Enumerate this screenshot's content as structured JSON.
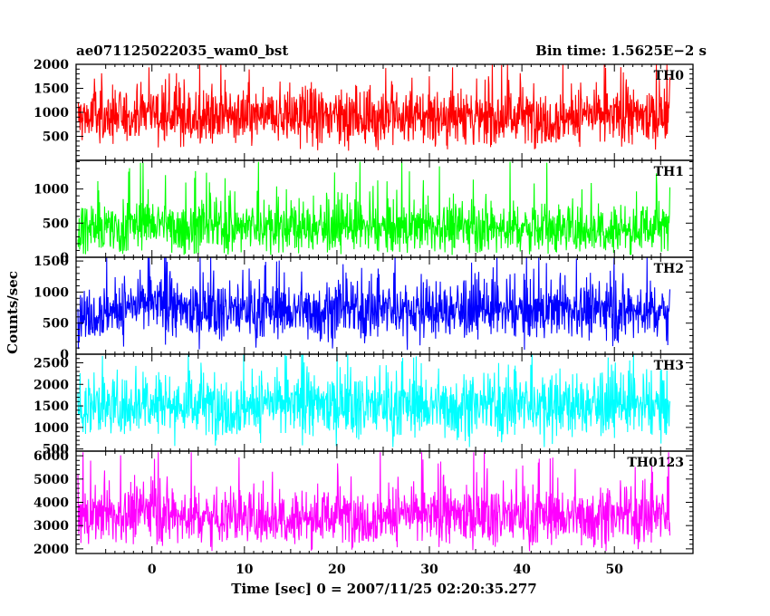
{
  "header": {
    "title": "ae071125022035_wam0_bst",
    "bin_time": "Bin time: 1.5625E−2 s"
  },
  "chart_data": {
    "type": "line",
    "title": "ae071125022035_wam0_bst",
    "subtitle": "Bin time: 1.5625E−2 s",
    "xlabel": "Time [sec] 0 = 2007/11/25 02:20:35.277",
    "ylabel": "Counts/sec",
    "xlim": [
      -8.2,
      58.5
    ],
    "data_range": [
      -8.0,
      56.0
    ],
    "x_ticks": [
      0,
      10,
      20,
      30,
      40,
      50
    ],
    "panels": [
      {
        "name": "TH0",
        "color": "#ff0000",
        "ylim": [
          0,
          2000
        ],
        "ticks": [
          500,
          1000,
          1500,
          2000
        ],
        "mean": 900,
        "spread": 300,
        "min": 200,
        "max": 2000,
        "peak_x": 0.0
      },
      {
        "name": "TH1",
        "color": "#00ff00",
        "ylim": [
          0,
          1420
        ],
        "ticks": [
          0,
          500,
          1000
        ],
        "mean": 430,
        "spread": 190,
        "min": 30,
        "max": 1400,
        "peak_x": 0.0
      },
      {
        "name": "TH2",
        "color": "#0000ff",
        "ylim": [
          0,
          1560
        ],
        "ticks": [
          0,
          500,
          1000,
          1500
        ],
        "mean": 700,
        "spread": 230,
        "min": 60,
        "max": 1560,
        "peak_x": 0.0
      },
      {
        "name": "TH3",
        "color": "#00ffff",
        "ylim": [
          450,
          2700
        ],
        "ticks": [
          500,
          1000,
          1500,
          2000,
          2500
        ],
        "mean": 1500,
        "spread": 370,
        "min": 540,
        "max": 2700,
        "peak_x": 0.0
      },
      {
        "name": "TH0123",
        "color": "#ff00ff",
        "ylim": [
          1800,
          6200
        ],
        "ticks": [
          2000,
          3000,
          4000,
          5000,
          6000
        ],
        "mean": 3400,
        "spread": 620,
        "min": 1900,
        "max": 6150,
        "peak_x": 0.0
      }
    ]
  }
}
